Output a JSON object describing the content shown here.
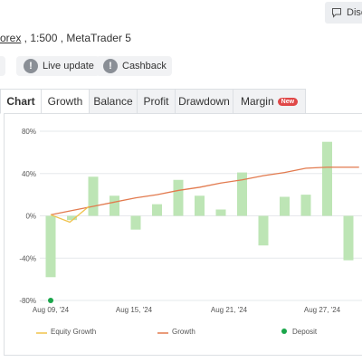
{
  "header": {
    "discuss_label": "Disc",
    "subtitle_link": "orex",
    "subtitle_rest": " , 1:500 , MetaTrader 5"
  },
  "pills": {
    "live_update": "Live update",
    "cashback": "Cashback"
  },
  "tabs": [
    {
      "label": "Chart"
    },
    {
      "label": "Growth"
    },
    {
      "label": "Balance"
    },
    {
      "label": "Profit"
    },
    {
      "label": "Drawdown"
    },
    {
      "label": "Margin",
      "badge": "New"
    }
  ],
  "chart_data": {
    "type": "bar",
    "yticks": [
      "80%",
      "40%",
      "0%",
      "-40%",
      "-80%"
    ],
    "ytick_values": [
      80,
      40,
      0,
      -40,
      -80
    ],
    "ylim": [
      -80,
      80
    ],
    "xticks": [
      "Aug 09, '24",
      "Aug 15, '24",
      "Aug 21, '24",
      "Aug 27, '24"
    ],
    "grid": true,
    "bars": [
      {
        "value": -58
      },
      {
        "value": -4
      },
      {
        "value": 37
      },
      {
        "value": 19
      },
      {
        "value": -13
      },
      {
        "value": 11
      },
      {
        "value": 34
      },
      {
        "value": 19
      },
      {
        "value": 6
      },
      {
        "value": 41
      },
      {
        "value": -28
      },
      {
        "value": 18
      },
      {
        "value": 20
      },
      {
        "value": 70
      },
      {
        "value": -42
      }
    ],
    "growth_line": [
      1,
      5,
      9,
      13,
      17,
      20,
      24,
      27,
      31,
      34,
      38,
      41,
      45,
      46,
      46
    ],
    "equity_growth_line": [
      1,
      -6,
      9
    ],
    "deposit_marker": {
      "value": -80
    },
    "legend": [
      {
        "label": "Equity Growth",
        "color": "#f0c24b"
      },
      {
        "label": "Growth",
        "color": "#e27a4e"
      },
      {
        "label": "Deposit",
        "color": "#1aa64a"
      }
    ],
    "colors": {
      "bar": "#bde5b5",
      "growth": "#e27a4e",
      "equity": "#f0c24b",
      "deposit": "#1aa64a",
      "grid": "#e6e8eb"
    }
  }
}
